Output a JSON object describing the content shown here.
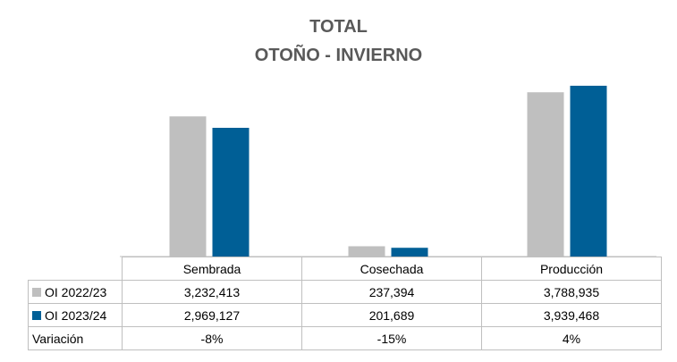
{
  "title_line1": "TOTAL",
  "title_line2": "OTOÑO - INVIERNO",
  "chart_data": {
    "type": "bar",
    "title": "TOTAL OTOÑO - INVIERNO",
    "categories": [
      "Sembrada",
      "Cosechada",
      "Producción"
    ],
    "series": [
      {
        "name": "OI 2022/23",
        "values": [
          3232413,
          237394,
          3788935
        ],
        "color": "#bfbfbf"
      },
      {
        "name": "OI 2023/24",
        "values": [
          2969127,
          201689,
          3939468
        ],
        "color": "#005f96"
      }
    ],
    "ylim": [
      0,
      4000000
    ],
    "legend": "data-table",
    "grid": false
  },
  "table": {
    "rows": [
      {
        "label": "OI 2022/23",
        "values": [
          "3,232,413",
          "237,394",
          "3,788,935"
        ]
      },
      {
        "label": "OI 2023/24",
        "values": [
          "2,969,127",
          "201,689",
          "3,939,468"
        ]
      },
      {
        "label": "Variación",
        "values": [
          "-8%",
          "-15%",
          "4%"
        ]
      }
    ]
  }
}
